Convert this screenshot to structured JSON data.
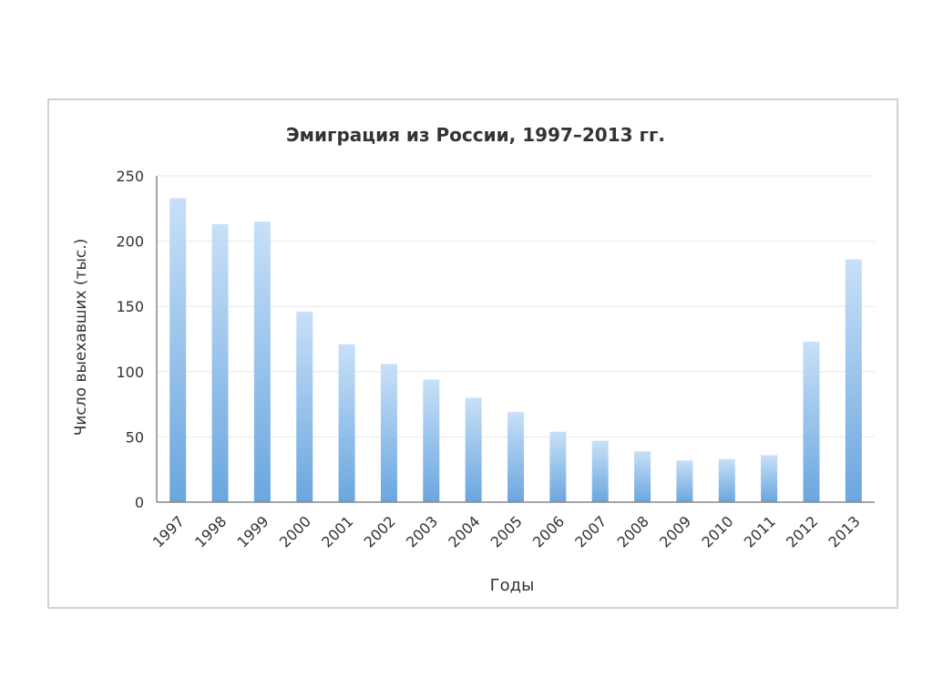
{
  "chart_data": {
    "type": "bar",
    "title": "Эмиграция из России, 1997–2013 гг.",
    "xlabel": "Годы",
    "ylabel": "Число выехавших (тыс.)",
    "ylim": [
      0,
      250
    ],
    "yticks": [
      0,
      50,
      100,
      150,
      200,
      250
    ],
    "categories": [
      "1997",
      "1998",
      "1999",
      "2000",
      "2001",
      "2002",
      "2003",
      "2004",
      "2005",
      "2006",
      "2007",
      "2008",
      "2009",
      "2010",
      "2011",
      "2012",
      "2013"
    ],
    "values": [
      233,
      213,
      215,
      146,
      121,
      106,
      94,
      80,
      69,
      54,
      47,
      39,
      32,
      33,
      36,
      123,
      186
    ],
    "grid": true,
    "legend": false,
    "colors": {
      "bar_top": "#c8e0f8",
      "bar_bottom": "#6aa6de",
      "grid": "#e8e8e8",
      "axis": "#888888",
      "text": "#333333"
    }
  }
}
